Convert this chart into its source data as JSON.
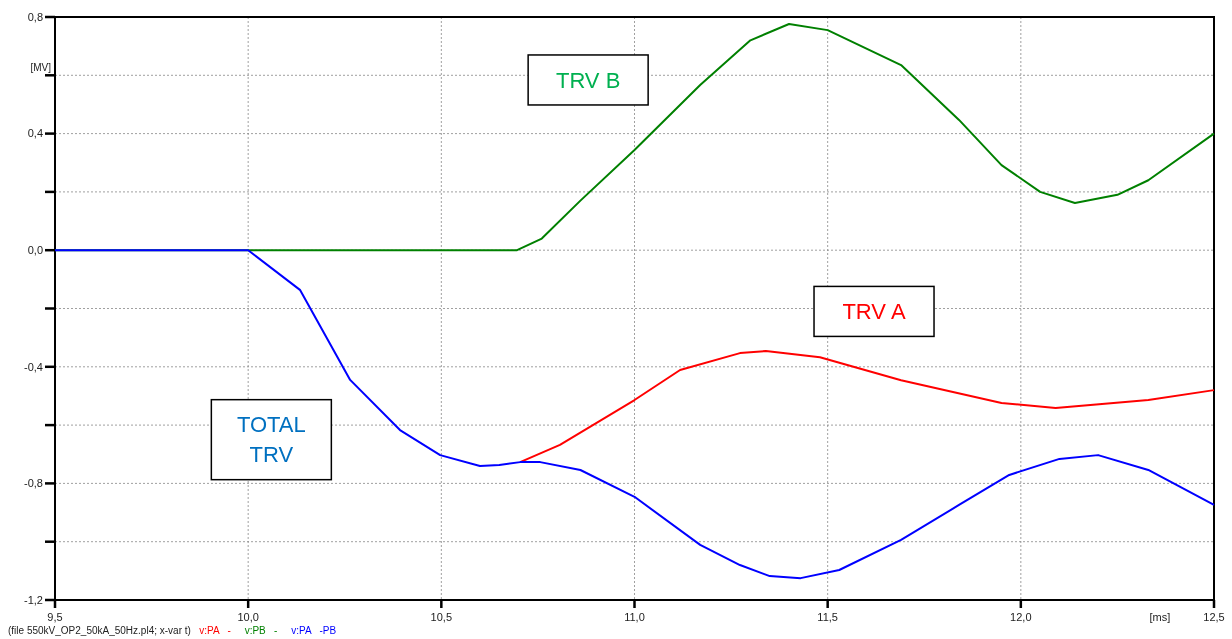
{
  "chart_data": {
    "type": "line",
    "xlabel": "[ms]",
    "ylabel": "[MV]",
    "xlim": [
      9.5,
      12.5
    ],
    "xticks": [
      {
        "value": 9.5,
        "label": "9,5"
      },
      {
        "value": 10.0,
        "label": "10,0"
      },
      {
        "value": 10.5,
        "label": "10,5"
      },
      {
        "value": 11.0,
        "label": "11,0"
      },
      {
        "value": 11.5,
        "label": "11,5"
      },
      {
        "value": 12.0,
        "label": "12,0"
      },
      {
        "value": 12.5,
        "label": "12,5"
      }
    ],
    "ylim": [
      -1.2,
      0.8
    ],
    "yticks": [
      {
        "value": -1.2,
        "label": "-1,2"
      },
      {
        "value": -1.0,
        "label": null
      },
      {
        "value": -0.8,
        "label": "-0,8"
      },
      {
        "value": -0.6,
        "label": null
      },
      {
        "value": -0.4,
        "label": "-0,4"
      },
      {
        "value": -0.2,
        "label": null
      },
      {
        "value": 0.0,
        "label": "0,0"
      },
      {
        "value": 0.2,
        "label": null
      },
      {
        "value": 0.4,
        "label": "0,4"
      },
      {
        "value": 0.6,
        "label": null
      },
      {
        "value": 0.8,
        "label": "0,8"
      }
    ],
    "grid": true,
    "legend": "bottom left",
    "marker": "none",
    "line_style": "solid",
    "series": [
      {
        "name": "v:PA   -",
        "color": "#ff0000",
        "x": [
          10.704,
          10.807,
          11.0,
          11.118,
          11.273,
          11.34,
          11.48,
          11.69,
          11.95,
          12.09,
          12.33,
          12.5
        ],
        "values": [
          -0.727,
          -0.668,
          -0.514,
          -0.411,
          -0.353,
          -0.346,
          -0.367,
          -0.446,
          -0.524,
          -0.541,
          -0.514,
          -0.48
        ]
      },
      {
        "name": "v:PB   -",
        "color": "#008000",
        "x": [
          9.5,
          10.0,
          10.696,
          10.76,
          10.86,
          11.0,
          11.17,
          11.3,
          11.4,
          11.5,
          11.69,
          11.84,
          11.95,
          12.05,
          12.14,
          12.25,
          12.33,
          12.5
        ],
        "values": [
          0,
          0,
          0,
          0.04,
          0.17,
          0.344,
          0.567,
          0.72,
          0.776,
          0.755,
          0.635,
          0.447,
          0.292,
          0.2,
          0.162,
          0.19,
          0.24,
          0.4
        ]
      },
      {
        "name": "v:PA   -PB",
        "color": "#0000ff",
        "x": [
          9.5,
          10.0,
          10.134,
          10.264,
          10.393,
          10.497,
          10.6,
          10.65,
          10.704,
          10.756,
          10.86,
          11.0,
          11.17,
          11.273,
          11.35,
          11.43,
          11.53,
          11.69,
          11.84,
          11.97,
          12.1,
          12.2,
          12.33,
          12.5
        ],
        "values": [
          0,
          0,
          -0.136,
          -0.445,
          -0.617,
          -0.703,
          -0.74,
          -0.737,
          -0.727,
          -0.727,
          -0.754,
          -0.846,
          -1.011,
          -1.08,
          -1.118,
          -1.125,
          -1.097,
          -0.994,
          -0.874,
          -0.771,
          -0.716,
          -0.703,
          -0.754,
          -0.874
        ]
      }
    ],
    "annotations": [
      "TRV B",
      "TRV A",
      "TOTAL\nTRV",
      "(file 550kV_OP2_50kA_50Hz.pl4; x-var t)"
    ]
  }
}
